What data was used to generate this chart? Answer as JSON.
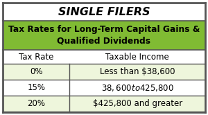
{
  "title": "SINGLE FILERS",
  "subtitle": "Tax Rates for Long-Term Capital Gains &\nQualified Dividends",
  "col_headers": [
    "Tax Rate",
    "Taxable Income"
  ],
  "rows": [
    [
      "0%",
      "Less than $38,600"
    ],
    [
      "15%",
      "$38,600 to $425,800"
    ],
    [
      "20%",
      "$425,800 and greater"
    ]
  ],
  "color_header_bg": "#80bb33",
  "color_header_text": "#000000",
  "color_row_alt": "#eef6dc",
  "color_row_normal": "#ffffff",
  "color_border": "#555555",
  "title_fontsize": 11.5,
  "subtitle_fontsize": 8.8,
  "col_header_fontsize": 8.5,
  "row_fontsize": 8.5,
  "figsize": [
    3.0,
    1.66
  ],
  "dpi": 100
}
